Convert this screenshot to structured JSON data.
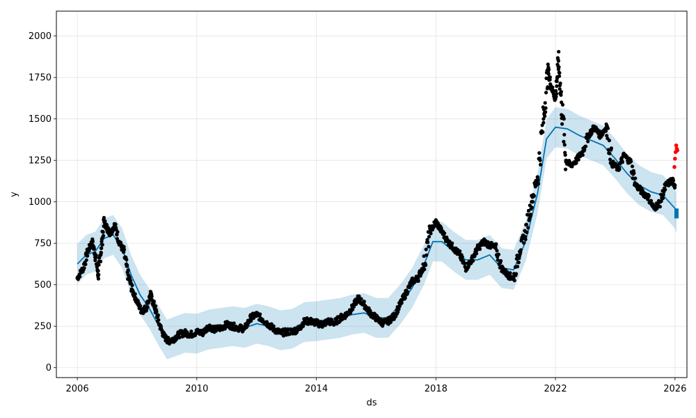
{
  "chart_data": {
    "type": "line",
    "title": "",
    "xlabel": "ds",
    "ylabel": "y",
    "xlim": [
      2005.3,
      2026.4
    ],
    "ylim": [
      -60,
      2150
    ],
    "x_ticks": [
      2006,
      2010,
      2014,
      2018,
      2022,
      2026
    ],
    "x_tick_labels": [
      "2006",
      "2010",
      "2014",
      "2018",
      "2022",
      "2026"
    ],
    "y_ticks": [
      0,
      250,
      500,
      750,
      1000,
      1250,
      1500,
      1750,
      2000
    ],
    "y_tick_labels": [
      "0",
      "250",
      "500",
      "750",
      "1000",
      "1250",
      "1500",
      "1750",
      "2000"
    ],
    "grid": true,
    "series": [
      {
        "kind": "observed-points",
        "color": "#000000",
        "points": [
          [
            2006.0,
            540
          ],
          [
            2006.2,
            600
          ],
          [
            2006.35,
            700
          ],
          [
            2006.5,
            760
          ],
          [
            2006.6,
            680
          ],
          [
            2006.7,
            560
          ],
          [
            2006.8,
            720
          ],
          [
            2006.9,
            880
          ],
          [
            2007.0,
            840
          ],
          [
            2007.1,
            810
          ],
          [
            2007.25,
            860
          ],
          [
            2007.4,
            760
          ],
          [
            2007.55,
            700
          ],
          [
            2007.7,
            560
          ],
          [
            2007.85,
            460
          ],
          [
            2008.0,
            400
          ],
          [
            2008.15,
            340
          ],
          [
            2008.3,
            360
          ],
          [
            2008.45,
            440
          ],
          [
            2008.6,
            360
          ],
          [
            2008.75,
            260
          ],
          [
            2008.9,
            190
          ],
          [
            2009.05,
            160
          ],
          [
            2009.2,
            170
          ],
          [
            2009.4,
            200
          ],
          [
            2009.6,
            210
          ],
          [
            2009.8,
            200
          ],
          [
            2010.0,
            215
          ],
          [
            2010.2,
            210
          ],
          [
            2010.4,
            250
          ],
          [
            2010.6,
            230
          ],
          [
            2010.8,
            240
          ],
          [
            2011.0,
            260
          ],
          [
            2011.2,
            250
          ],
          [
            2011.4,
            240
          ],
          [
            2011.6,
            235
          ],
          [
            2011.8,
            300
          ],
          [
            2012.0,
            320
          ],
          [
            2012.2,
            290
          ],
          [
            2012.4,
            260
          ],
          [
            2012.6,
            230
          ],
          [
            2012.8,
            210
          ],
          [
            2013.0,
            215
          ],
          [
            2013.2,
            220
          ],
          [
            2013.4,
            230
          ],
          [
            2013.6,
            280
          ],
          [
            2013.8,
            280
          ],
          [
            2014.0,
            270
          ],
          [
            2014.2,
            260
          ],
          [
            2014.4,
            280
          ],
          [
            2014.6,
            270
          ],
          [
            2014.8,
            300
          ],
          [
            2015.0,
            320
          ],
          [
            2015.2,
            360
          ],
          [
            2015.4,
            420
          ],
          [
            2015.6,
            380
          ],
          [
            2015.8,
            330
          ],
          [
            2016.0,
            300
          ],
          [
            2016.2,
            270
          ],
          [
            2016.4,
            280
          ],
          [
            2016.6,
            310
          ],
          [
            2016.8,
            380
          ],
          [
            2017.0,
            450
          ],
          [
            2017.2,
            520
          ],
          [
            2017.4,
            540
          ],
          [
            2017.6,
            620
          ],
          [
            2017.8,
            820
          ],
          [
            2018.0,
            880
          ],
          [
            2018.2,
            820
          ],
          [
            2018.4,
            760
          ],
          [
            2018.6,
            720
          ],
          [
            2018.8,
            680
          ],
          [
            2019.0,
            600
          ],
          [
            2019.2,
            650
          ],
          [
            2019.4,
            720
          ],
          [
            2019.6,
            760
          ],
          [
            2019.8,
            740
          ],
          [
            2020.0,
            720
          ],
          [
            2020.2,
            600
          ],
          [
            2020.4,
            560
          ],
          [
            2020.6,
            540
          ],
          [
            2020.8,
            700
          ],
          [
            2021.0,
            820
          ],
          [
            2021.2,
            1000
          ],
          [
            2021.4,
            1150
          ],
          [
            2021.6,
            1500
          ],
          [
            2021.75,
            1800
          ],
          [
            2021.85,
            1700
          ],
          [
            2022.0,
            1620
          ],
          [
            2022.1,
            1850
          ],
          [
            2022.2,
            1600
          ],
          [
            2022.35,
            1250
          ],
          [
            2022.5,
            1220
          ],
          [
            2022.7,
            1250
          ],
          [
            2022.9,
            1300
          ],
          [
            2023.1,
            1400
          ],
          [
            2023.3,
            1450
          ],
          [
            2023.5,
            1400
          ],
          [
            2023.7,
            1450
          ],
          [
            2023.9,
            1230
          ],
          [
            2024.1,
            1200
          ],
          [
            2024.3,
            1280
          ],
          [
            2024.5,
            1240
          ],
          [
            2024.7,
            1100
          ],
          [
            2024.9,
            1060
          ],
          [
            2025.1,
            1030
          ],
          [
            2025.3,
            960
          ],
          [
            2025.5,
            1000
          ],
          [
            2025.7,
            1100
          ],
          [
            2025.9,
            1130
          ],
          [
            2026.0,
            1100
          ]
        ]
      },
      {
        "kind": "test-points",
        "color": "#ff0000",
        "points": [
          [
            2025.98,
            1210
          ],
          [
            2026.0,
            1260
          ],
          [
            2026.02,
            1300
          ],
          [
            2026.04,
            1340
          ],
          [
            2026.06,
            1320
          ],
          [
            2026.08,
            1310
          ]
        ]
      },
      {
        "kind": "forecast-line",
        "color": "#0072b2",
        "points": [
          [
            2006.0,
            625
          ],
          [
            2006.3,
            680
          ],
          [
            2006.6,
            700
          ],
          [
            2006.9,
            780
          ],
          [
            2007.2,
            800
          ],
          [
            2007.5,
            720
          ],
          [
            2007.8,
            560
          ],
          [
            2008.1,
            440
          ],
          [
            2008.4,
            360
          ],
          [
            2008.7,
            260
          ],
          [
            2009.0,
            170
          ],
          [
            2009.3,
            190
          ],
          [
            2009.6,
            210
          ],
          [
            2010.0,
            205
          ],
          [
            2010.4,
            230
          ],
          [
            2010.8,
            240
          ],
          [
            2011.2,
            250
          ],
          [
            2011.6,
            240
          ],
          [
            2012.0,
            265
          ],
          [
            2012.4,
            250
          ],
          [
            2012.8,
            225
          ],
          [
            2013.2,
            235
          ],
          [
            2013.6,
            275
          ],
          [
            2014.0,
            280
          ],
          [
            2014.4,
            290
          ],
          [
            2014.8,
            300
          ],
          [
            2015.2,
            320
          ],
          [
            2015.6,
            330
          ],
          [
            2016.0,
            300
          ],
          [
            2016.4,
            300
          ],
          [
            2016.8,
            380
          ],
          [
            2017.2,
            480
          ],
          [
            2017.6,
            620
          ],
          [
            2017.9,
            760
          ],
          [
            2018.2,
            760
          ],
          [
            2018.6,
            700
          ],
          [
            2019.0,
            650
          ],
          [
            2019.4,
            650
          ],
          [
            2019.8,
            680
          ],
          [
            2020.2,
            600
          ],
          [
            2020.6,
            590
          ],
          [
            2021.0,
            760
          ],
          [
            2021.4,
            1050
          ],
          [
            2021.7,
            1380
          ],
          [
            2022.0,
            1450
          ],
          [
            2022.4,
            1440
          ],
          [
            2022.8,
            1400
          ],
          [
            2023.2,
            1370
          ],
          [
            2023.6,
            1340
          ],
          [
            2024.0,
            1260
          ],
          [
            2024.4,
            1170
          ],
          [
            2024.8,
            1100
          ],
          [
            2025.2,
            1060
          ],
          [
            2025.6,
            1040
          ],
          [
            2026.0,
            960
          ],
          [
            2026.05,
            930
          ]
        ]
      },
      {
        "kind": "uncertainty-band",
        "color": "#0072b2",
        "band_width": 120
      }
    ]
  }
}
